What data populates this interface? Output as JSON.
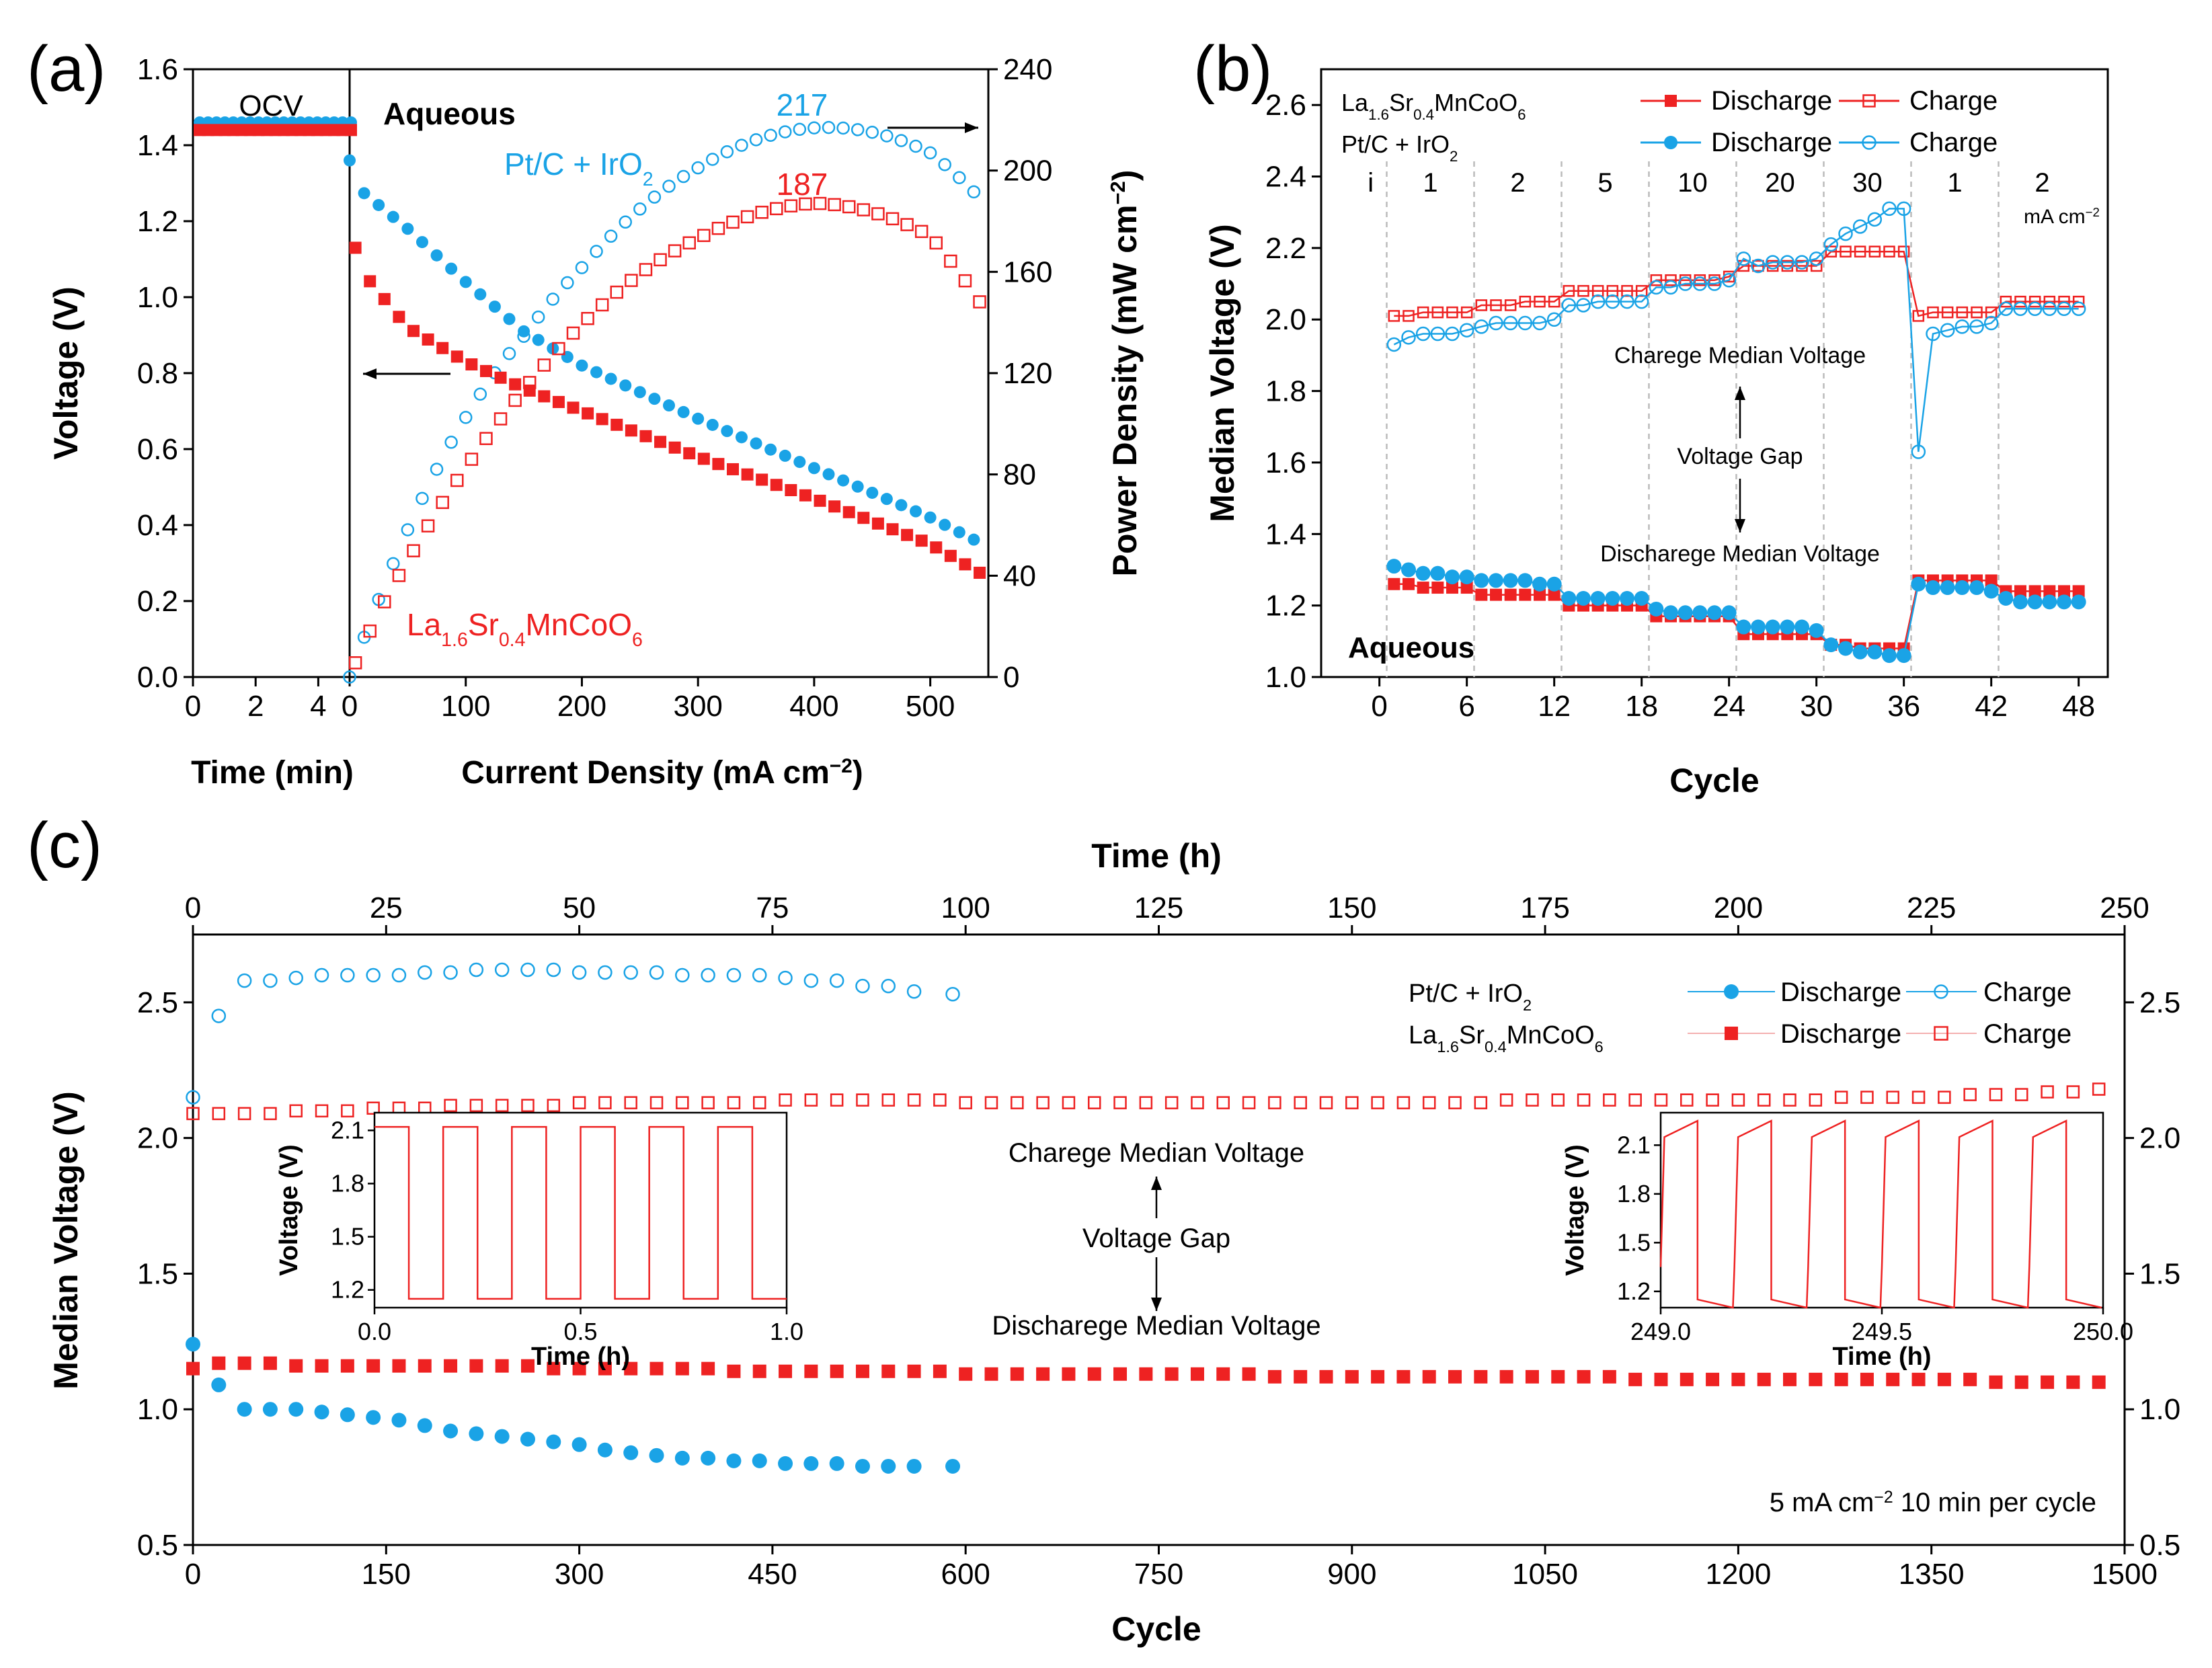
{
  "colors": {
    "blue": "#1aa3e6",
    "red": "#ee2222",
    "black": "#000000"
  },
  "panels": {
    "a": "(a)",
    "b": "(b)",
    "c": "(c)"
  },
  "chart_data": [
    {
      "id": "a",
      "type": "scatter",
      "title": "",
      "left_xlabel": "Time (min)",
      "xlabel": "Current Density (mA cm⁻²)",
      "ylabel": "Voltage (V)",
      "y2label": "Power Density (mW cm⁻²)",
      "time_range": [
        0,
        5
      ],
      "time_ticks": [
        "0",
        "2",
        "4"
      ],
      "xlim": [
        0,
        550
      ],
      "x_ticks": [
        "0",
        "100",
        "200",
        "300",
        "400",
        "500"
      ],
      "ylim": [
        0,
        1.6
      ],
      "y_ticks": [
        "0.0",
        "0.2",
        "0.4",
        "0.6",
        "0.8",
        "1.0",
        "1.2",
        "1.4",
        "1.6"
      ],
      "y2lim": [
        0,
        240
      ],
      "y2_ticks": [
        "0",
        "40",
        "80",
        "120",
        "160",
        "200",
        "240"
      ],
      "ocv_label": "OCV",
      "condition_label": "Aqueous",
      "series_labels": {
        "ptc": "Pt/C + IrO₂",
        "lsmco": "La₁.₆Sr₀.₄MnCoO₆"
      },
      "peak_labels": {
        "ptc": "217",
        "lsmco": "187"
      },
      "peaks": {
        "ptc": 217,
        "lsmco": 187
      },
      "ocv": {
        "ptc": 1.46,
        "lsmco": 1.44
      },
      "voltage_curves": {
        "ptc": {
          "x": [
            0,
            10,
            50,
            100,
            150,
            200,
            300,
            400,
            500,
            545
          ],
          "y": [
            1.36,
            1.28,
            1.18,
            1.04,
            0.91,
            0.82,
            0.68,
            0.55,
            0.42,
            0.35
          ]
        },
        "lsmco": {
          "x": [
            5,
            10,
            50,
            100,
            150,
            200,
            300,
            400,
            500,
            545
          ],
          "y": [
            1.13,
            1.07,
            0.92,
            0.83,
            0.76,
            0.7,
            0.58,
            0.47,
            0.35,
            0.27
          ]
        }
      }
    },
    {
      "id": "b",
      "type": "line",
      "xlabel": "Cycle",
      "ylabel": "Median Voltage (V)",
      "xlim": [
        -4,
        50
      ],
      "x_ticks": [
        "0",
        "6",
        "12",
        "18",
        "24",
        "30",
        "36",
        "42",
        "48"
      ],
      "ylim": [
        1.0,
        2.7
      ],
      "y_ticks": [
        "1.0",
        "1.2",
        "1.4",
        "1.6",
        "1.8",
        "2.0",
        "2.2",
        "2.4",
        "2.6"
      ],
      "legend": {
        "lsmco": "La₁.₆Sr₀.₄MnCoO₆",
        "ptc": "Pt/C + IrO₂",
        "discharge": "Discharge",
        "charge": "Charge"
      },
      "rate_labels": [
        "i",
        "1",
        "2",
        "5",
        "10",
        "20",
        "30",
        "1",
        "2"
      ],
      "rate_unit": "mA cm⁻²",
      "annotations": {
        "charge": "Charege Median Voltage",
        "gap": "Voltage Gap",
        "discharge": "Discharege Median Voltage"
      },
      "condition_label": "Aqueous",
      "cycles": [
        1,
        2,
        3,
        4,
        5,
        6,
        7,
        8,
        9,
        10,
        11,
        12,
        13,
        14,
        15,
        16,
        17,
        18,
        19,
        20,
        21,
        22,
        23,
        24,
        25,
        26,
        27,
        28,
        29,
        30,
        31,
        32,
        33,
        34,
        35,
        36,
        37,
        38,
        39,
        40,
        41,
        42,
        43,
        44,
        45,
        46,
        47,
        48
      ],
      "series": [
        {
          "name": "LSMCO Charge",
          "values": [
            2.01,
            2.01,
            2.02,
            2.02,
            2.02,
            2.02,
            2.04,
            2.04,
            2.04,
            2.05,
            2.05,
            2.05,
            2.08,
            2.08,
            2.08,
            2.08,
            2.08,
            2.08,
            2.11,
            2.11,
            2.11,
            2.11,
            2.11,
            2.12,
            2.15,
            2.15,
            2.15,
            2.15,
            2.15,
            2.15,
            2.19,
            2.19,
            2.19,
            2.19,
            2.19,
            2.19,
            2.01,
            2.02,
            2.02,
            2.02,
            2.02,
            2.02,
            2.05,
            2.05,
            2.05,
            2.05,
            2.05,
            2.05
          ]
        },
        {
          "name": "LSMCO Discharge",
          "values": [
            1.26,
            1.26,
            1.25,
            1.25,
            1.25,
            1.25,
            1.23,
            1.23,
            1.23,
            1.23,
            1.23,
            1.23,
            1.2,
            1.2,
            1.2,
            1.2,
            1.2,
            1.2,
            1.17,
            1.17,
            1.17,
            1.17,
            1.17,
            1.17,
            1.12,
            1.12,
            1.12,
            1.12,
            1.12,
            1.12,
            1.09,
            1.09,
            1.08,
            1.08,
            1.08,
            1.08,
            1.27,
            1.27,
            1.27,
            1.27,
            1.27,
            1.27,
            1.24,
            1.24,
            1.24,
            1.24,
            1.24,
            1.24
          ]
        },
        {
          "name": "Pt/C Charge",
          "values": [
            1.93,
            1.95,
            1.96,
            1.96,
            1.96,
            1.97,
            1.98,
            1.99,
            1.99,
            1.99,
            1.99,
            2.0,
            2.04,
            2.04,
            2.05,
            2.05,
            2.05,
            2.05,
            2.09,
            2.09,
            2.1,
            2.1,
            2.1,
            2.11,
            2.17,
            2.15,
            2.16,
            2.16,
            2.16,
            2.17,
            2.21,
            2.24,
            2.26,
            2.28,
            2.31,
            2.31,
            1.63,
            1.96,
            1.97,
            1.98,
            1.98,
            1.99,
            2.03,
            2.03,
            2.03,
            2.03,
            2.03,
            2.03
          ]
        },
        {
          "name": "Pt/C Discharge",
          "values": [
            1.31,
            1.3,
            1.29,
            1.29,
            1.28,
            1.28,
            1.27,
            1.27,
            1.27,
            1.27,
            1.26,
            1.26,
            1.22,
            1.22,
            1.22,
            1.22,
            1.22,
            1.22,
            1.19,
            1.18,
            1.18,
            1.18,
            1.18,
            1.18,
            1.14,
            1.14,
            1.14,
            1.14,
            1.14,
            1.13,
            1.09,
            1.08,
            1.07,
            1.07,
            1.06,
            1.06,
            1.26,
            1.25,
            1.25,
            1.25,
            1.25,
            1.24,
            1.22,
            1.21,
            1.21,
            1.21,
            1.21,
            1.21
          ]
        }
      ]
    },
    {
      "id": "c",
      "type": "scatter",
      "xlabel": "Cycle",
      "ylabel": "Median Voltage (V)",
      "top_xlabel": "Time (h)",
      "xlim": [
        0,
        1500
      ],
      "x_ticks": [
        "0",
        "150",
        "300",
        "450",
        "600",
        "750",
        "900",
        "1050",
        "1200",
        "1350",
        "1500"
      ],
      "top_xlim": [
        0,
        250
      ],
      "top_ticks": [
        "0",
        "25",
        "50",
        "75",
        "100",
        "125",
        "150",
        "175",
        "200",
        "225",
        "250"
      ],
      "ylim": [
        0.5,
        2.75
      ],
      "y_ticks": [
        "0.5",
        "1.0",
        "1.5",
        "2.0",
        "2.5"
      ],
      "legend": {
        "ptc": "Pt/C + IrO₂",
        "lsmco": "La₁.₆Sr₀.₄MnCoO₆",
        "discharge": "Discharge",
        "charge": "Charge"
      },
      "annotations": {
        "charge": "Charege Median Voltage",
        "gap": "Voltage Gap",
        "discharge": "Discharege Median Voltage"
      },
      "condition": "5 mA cm⁻² 10 min per cycle",
      "series": [
        {
          "name": "Pt/C Charge",
          "x": [
            0,
            20,
            40,
            60,
            80,
            100,
            120,
            140,
            160,
            180,
            200,
            220,
            240,
            260,
            280,
            300,
            320,
            340,
            360,
            380,
            400,
            420,
            440,
            460,
            480,
            500,
            520,
            540,
            560,
            590
          ],
          "y": [
            2.15,
            2.45,
            2.58,
            2.58,
            2.59,
            2.6,
            2.6,
            2.6,
            2.6,
            2.61,
            2.61,
            2.62,
            2.62,
            2.62,
            2.62,
            2.61,
            2.61,
            2.61,
            2.61,
            2.6,
            2.6,
            2.6,
            2.6,
            2.59,
            2.58,
            2.58,
            2.56,
            2.56,
            2.54,
            2.53
          ]
        },
        {
          "name": "Pt/C Discharge",
          "x": [
            0,
            20,
            40,
            60,
            80,
            100,
            120,
            140,
            160,
            180,
            200,
            220,
            240,
            260,
            280,
            300,
            320,
            340,
            360,
            380,
            400,
            420,
            440,
            460,
            480,
            500,
            520,
            540,
            560,
            590
          ],
          "y": [
            1.24,
            1.09,
            1.0,
            1.0,
            1.0,
            0.99,
            0.98,
            0.97,
            0.96,
            0.94,
            0.92,
            0.91,
            0.9,
            0.89,
            0.88,
            0.87,
            0.85,
            0.84,
            0.83,
            0.82,
            0.82,
            0.81,
            0.81,
            0.8,
            0.8,
            0.8,
            0.79,
            0.79,
            0.79,
            0.79
          ]
        },
        {
          "name": "LSMCO Charge",
          "x": [
            0,
            20,
            40,
            60,
            80,
            100,
            120,
            140,
            160,
            180,
            200,
            220,
            240,
            260,
            280,
            300,
            320,
            340,
            360,
            380,
            400,
            420,
            440,
            460,
            480,
            500,
            520,
            540,
            560,
            580,
            600,
            620,
            640,
            660,
            680,
            700,
            720,
            740,
            760,
            780,
            800,
            820,
            840,
            860,
            880,
            900,
            920,
            940,
            960,
            980,
            1000,
            1020,
            1040,
            1060,
            1080,
            1100,
            1120,
            1140,
            1160,
            1180,
            1200,
            1220,
            1240,
            1260,
            1280,
            1300,
            1320,
            1340,
            1360,
            1380,
            1400,
            1420,
            1440,
            1460,
            1480
          ],
          "y": [
            2.09,
            2.09,
            2.09,
            2.09,
            2.1,
            2.1,
            2.1,
            2.11,
            2.11,
            2.11,
            2.12,
            2.12,
            2.12,
            2.12,
            2.12,
            2.13,
            2.13,
            2.13,
            2.13,
            2.13,
            2.13,
            2.13,
            2.13,
            2.14,
            2.14,
            2.14,
            2.14,
            2.14,
            2.14,
            2.14,
            2.13,
            2.13,
            2.13,
            2.13,
            2.13,
            2.13,
            2.13,
            2.13,
            2.13,
            2.13,
            2.13,
            2.13,
            2.13,
            2.13,
            2.13,
            2.13,
            2.13,
            2.13,
            2.13,
            2.13,
            2.13,
            2.14,
            2.14,
            2.14,
            2.14,
            2.14,
            2.14,
            2.14,
            2.14,
            2.14,
            2.14,
            2.14,
            2.14,
            2.14,
            2.15,
            2.15,
            2.15,
            2.15,
            2.15,
            2.16,
            2.16,
            2.16,
            2.17,
            2.17,
            2.18
          ]
        },
        {
          "name": "LSMCO Discharge",
          "x": [
            0,
            20,
            40,
            60,
            80,
            100,
            120,
            140,
            160,
            180,
            200,
            220,
            240,
            260,
            280,
            300,
            320,
            340,
            360,
            380,
            400,
            420,
            440,
            460,
            480,
            500,
            520,
            540,
            560,
            580,
            600,
            620,
            640,
            660,
            680,
            700,
            720,
            740,
            760,
            780,
            800,
            820,
            840,
            860,
            880,
            900,
            920,
            940,
            960,
            980,
            1000,
            1020,
            1040,
            1060,
            1080,
            1100,
            1120,
            1140,
            1160,
            1180,
            1200,
            1220,
            1240,
            1260,
            1280,
            1300,
            1320,
            1340,
            1360,
            1380,
            1400,
            1420,
            1440,
            1460,
            1480
          ],
          "y": [
            1.15,
            1.17,
            1.17,
            1.17,
            1.16,
            1.16,
            1.16,
            1.16,
            1.16,
            1.16,
            1.16,
            1.16,
            1.16,
            1.16,
            1.15,
            1.15,
            1.15,
            1.15,
            1.15,
            1.15,
            1.15,
            1.14,
            1.14,
            1.14,
            1.14,
            1.14,
            1.14,
            1.14,
            1.14,
            1.14,
            1.13,
            1.13,
            1.13,
            1.13,
            1.13,
            1.13,
            1.13,
            1.13,
            1.13,
            1.13,
            1.13,
            1.13,
            1.12,
            1.12,
            1.12,
            1.12,
            1.12,
            1.12,
            1.12,
            1.12,
            1.12,
            1.12,
            1.12,
            1.12,
            1.12,
            1.12,
            1.11,
            1.11,
            1.11,
            1.11,
            1.11,
            1.11,
            1.11,
            1.11,
            1.11,
            1.11,
            1.11,
            1.11,
            1.11,
            1.11,
            1.1,
            1.1,
            1.1,
            1.1,
            1.1
          ]
        }
      ],
      "insets": [
        {
          "xlabel": "Time (h)",
          "ylabel": "Voltage (V)",
          "xlim": [
            0,
            1
          ],
          "x_ticks": [
            "0.0",
            "0.5",
            "1.0"
          ],
          "ylim": [
            1.1,
            2.2
          ],
          "y_ticks": [
            "1.2",
            "1.5",
            "1.8",
            "2.1"
          ],
          "high": 2.12,
          "low": 1.15
        },
        {
          "xlabel": "Time (h)",
          "ylabel": "Voltage (V)",
          "xlim": [
            249,
            250
          ],
          "x_ticks": [
            "249.0",
            "249.5",
            "250.0"
          ],
          "ylim": [
            1.1,
            2.3
          ],
          "y_ticks": [
            "1.2",
            "1.5",
            "1.8",
            "2.1"
          ],
          "high": 2.25,
          "low": 1.1
        }
      ]
    }
  ]
}
